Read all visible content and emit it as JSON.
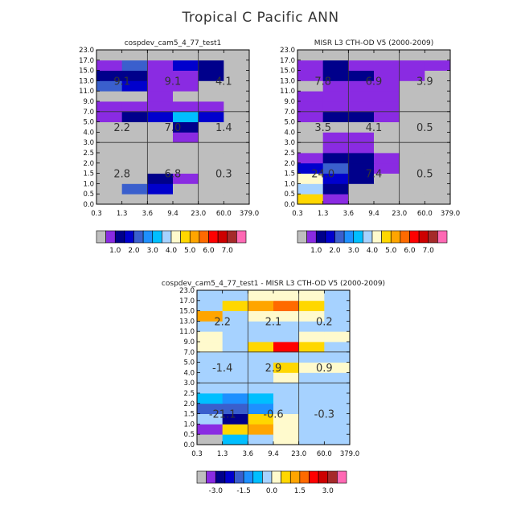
{
  "title": "Tropical C Pacific ANN",
  "colors": {
    "missing": "#bebebe",
    "abs_palette": [
      "#bebebe",
      "#8a2be2",
      "#00008b",
      "#0000cd",
      "#3a5fcd",
      "#1e90ff",
      "#00bfff",
      "#a6d2ff",
      "#fffacd",
      "#ffd700",
      "#ffa500",
      "#ff6a00",
      "#ff0000",
      "#cd0000",
      "#a52a2a",
      "#ff69b4"
    ],
    "diff_palette": [
      "#bebebe",
      "#8a2be2",
      "#00008b",
      "#0000cd",
      "#3a5fcd",
      "#1e90ff",
      "#00bfff",
      "#a6d2ff",
      "#fffacd",
      "#ffd700",
      "#ffa500",
      "#ff6a00",
      "#ff0000",
      "#cd0000",
      "#a52a2a",
      "#ff69b4"
    ]
  },
  "chart_data": [
    {
      "type": "heatmap",
      "title": "cospdev_cam5_4_77_test1",
      "x_ticks": [
        "0.3",
        "1.3",
        "3.6",
        "9.4",
        "23.0",
        "60.0",
        "379.0"
      ],
      "y_ticks": [
        "0.0",
        "0.5",
        "1.0",
        "1.5",
        "2.0",
        "2.5",
        "3.0",
        "4.0",
        "5.0",
        "7.0",
        "9.0",
        "11.0",
        "13.0",
        "15.0",
        "17.0",
        "23.0"
      ],
      "colorbar_labels": [
        "1.0",
        "2.0",
        "3.0",
        "4.0",
        "5.0",
        "6.0",
        "7.0"
      ],
      "cells": [
        [
          0,
          0,
          0,
          0,
          0,
          0
        ],
        [
          0,
          4,
          3,
          0,
          0,
          0
        ],
        [
          0,
          0,
          2,
          1,
          0,
          0
        ],
        [
          0,
          0,
          0,
          0,
          0,
          0
        ],
        [
          0,
          0,
          0,
          0,
          0,
          0
        ],
        [
          0,
          0,
          0,
          0,
          0,
          0
        ],
        [
          0,
          0,
          0,
          1,
          0,
          0
        ],
        [
          0,
          0,
          0,
          2,
          0,
          0
        ],
        [
          1,
          2,
          3,
          6,
          3,
          0
        ],
        [
          1,
          1,
          1,
          1,
          1,
          0
        ],
        [
          0,
          0,
          1,
          0,
          0,
          0
        ],
        [
          4,
          3,
          1,
          1,
          0,
          0
        ],
        [
          2,
          2,
          1,
          1,
          2,
          0
        ],
        [
          1,
          4,
          1,
          3,
          2,
          0
        ],
        [
          0,
          0,
          0,
          0,
          0,
          0
        ]
      ],
      "annotations": [
        {
          "text": "2.8",
          "x_band": 0,
          "y_band": 0
        },
        {
          "text": "6.8",
          "x_band": 1,
          "y_band": 0
        },
        {
          "text": "0.3",
          "x_band": 2,
          "y_band": 0
        },
        {
          "text": "2.2",
          "x_band": 0,
          "y_band": 1
        },
        {
          "text": "7.0",
          "x_band": 1,
          "y_band": 1
        },
        {
          "text": "1.4",
          "x_band": 2,
          "y_band": 1
        },
        {
          "text": "9.1",
          "x_band": 0,
          "y_band": 2
        },
        {
          "text": "9.1",
          "x_band": 1,
          "y_band": 2
        },
        {
          "text": "4.1",
          "x_band": 2,
          "y_band": 2
        }
      ]
    },
    {
      "type": "heatmap",
      "title": "MISR L3 CTH-OD V5 (2000-2009)",
      "x_ticks": [
        "0.3",
        "1.3",
        "3.6",
        "9.4",
        "23.0",
        "60.0",
        "379.0"
      ],
      "y_ticks": [
        "0.0",
        "0.5",
        "1.0",
        "1.5",
        "2.0",
        "2.5",
        "3.0",
        "4.0",
        "5.0",
        "7.0",
        "9.0",
        "11.0",
        "13.0",
        "15.0",
        "17.0",
        "23.0"
      ],
      "colorbar_labels": [
        "1.0",
        "2.0",
        "3.0",
        "4.0",
        "5.0",
        "6.0",
        "7.0"
      ],
      "cells": [
        [
          9,
          1,
          0,
          0,
          0,
          0
        ],
        [
          7,
          2,
          0,
          0,
          0,
          0
        ],
        [
          8,
          3,
          2,
          0,
          0,
          0
        ],
        [
          3,
          4,
          2,
          1,
          0,
          0
        ],
        [
          1,
          2,
          2,
          1,
          0,
          0
        ],
        [
          0,
          1,
          1,
          0,
          0,
          0
        ],
        [
          0,
          1,
          1,
          0,
          0,
          0
        ],
        [
          0,
          0,
          0,
          0,
          0,
          0
        ],
        [
          1,
          2,
          2,
          1,
          0,
          0
        ],
        [
          1,
          1,
          1,
          1,
          0,
          0
        ],
        [
          1,
          1,
          1,
          1,
          0,
          0
        ],
        [
          0,
          1,
          1,
          1,
          0,
          0
        ],
        [
          1,
          2,
          2,
          1,
          1,
          0
        ],
        [
          1,
          2,
          1,
          1,
          1,
          1
        ],
        [
          0,
          0,
          0,
          0,
          0,
          0
        ]
      ],
      "annotations": [
        {
          "text": "24.0",
          "x_band": 0,
          "y_band": 0
        },
        {
          "text": "7.4",
          "x_band": 1,
          "y_band": 0
        },
        {
          "text": "0.5",
          "x_band": 2,
          "y_band": 0
        },
        {
          "text": "3.5",
          "x_band": 0,
          "y_band": 1
        },
        {
          "text": "4.1",
          "x_band": 1,
          "y_band": 1
        },
        {
          "text": "0.5",
          "x_band": 2,
          "y_band": 1
        },
        {
          "text": "7.8",
          "x_band": 0,
          "y_band": 2
        },
        {
          "text": "6.9",
          "x_band": 1,
          "y_band": 2
        },
        {
          "text": "3.9",
          "x_band": 2,
          "y_band": 2
        }
      ]
    },
    {
      "type": "heatmap",
      "title": "cospdev_cam5_4_77_test1 - MISR L3 CTH-OD V5 (2000-2009)",
      "x_ticks": [
        "0.3",
        "1.3",
        "3.6",
        "9.4",
        "23.0",
        "60.0",
        "379.0"
      ],
      "y_ticks": [
        "0.0",
        "0.5",
        "1.0",
        "1.5",
        "2.0",
        "2.5",
        "3.0",
        "4.0",
        "5.0",
        "7.0",
        "9.0",
        "11.0",
        "13.0",
        "15.0",
        "17.0",
        "23.0"
      ],
      "colorbar_labels": [
        "-3.0",
        "-1.5",
        "0.0",
        "1.5",
        "3.0"
      ],
      "cells": [
        [
          0,
          6,
          7,
          8,
          7,
          7
        ],
        [
          1,
          9,
          10,
          8,
          7,
          7
        ],
        [
          7,
          2,
          9,
          8,
          7,
          7
        ],
        [
          4,
          4,
          5,
          7,
          7,
          7
        ],
        [
          6,
          5,
          6,
          7,
          7,
          7
        ],
        [
          7,
          7,
          7,
          7,
          7,
          7
        ],
        [
          7,
          7,
          7,
          8,
          7,
          7
        ],
        [
          7,
          7,
          7,
          9,
          8,
          8
        ],
        [
          7,
          7,
          7,
          7,
          7,
          7
        ],
        [
          8,
          7,
          9,
          12,
          9,
          7
        ],
        [
          8,
          7,
          7,
          7,
          8,
          8
        ],
        [
          7,
          7,
          7,
          7,
          7,
          7
        ],
        [
          10,
          7,
          8,
          8,
          8,
          7
        ],
        [
          7,
          9,
          10,
          11,
          9,
          7
        ],
        [
          7,
          7,
          8,
          8,
          8,
          7
        ]
      ],
      "annotations": [
        {
          "text": "-21.1",
          "x_band": 0,
          "y_band": 0
        },
        {
          "text": "-0.6",
          "x_band": 1,
          "y_band": 0
        },
        {
          "text": "-0.3",
          "x_band": 2,
          "y_band": 0
        },
        {
          "text": "-1.4",
          "x_band": 0,
          "y_band": 1
        },
        {
          "text": "2.9",
          "x_band": 1,
          "y_band": 1
        },
        {
          "text": "0.9",
          "x_band": 2,
          "y_band": 1
        },
        {
          "text": "2.2",
          "x_band": 0,
          "y_band": 2
        },
        {
          "text": "2.1",
          "x_band": 1,
          "y_band": 2
        },
        {
          "text": "0.2",
          "x_band": 2,
          "y_band": 2
        }
      ]
    }
  ]
}
